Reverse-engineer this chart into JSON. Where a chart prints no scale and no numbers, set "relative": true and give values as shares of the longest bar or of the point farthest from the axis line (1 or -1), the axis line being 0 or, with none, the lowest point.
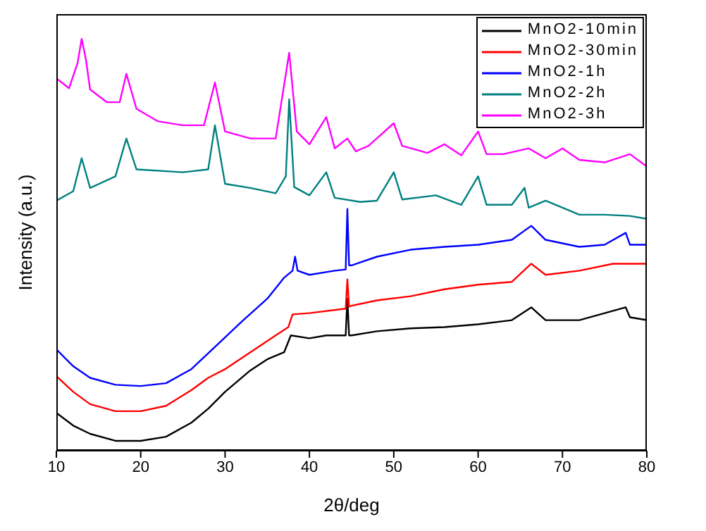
{
  "chart_data": {
    "type": "line",
    "xlabel": "2θ/deg",
    "ylabel": "Intensity (a.u.)",
    "relative": true,
    "xlim": [
      10,
      80
    ],
    "xticks": [
      10,
      20,
      30,
      40,
      50,
      60,
      70,
      80
    ],
    "legend": "top right",
    "grid": false,
    "marker": "none",
    "line_style": "solid",
    "series": [
      {
        "name": "MnO2-10min",
        "color": "#000000",
        "x": [
          10,
          12,
          14,
          17,
          20,
          23,
          26,
          28,
          30,
          33,
          35,
          37,
          37.8,
          40,
          42,
          44.3,
          44.5,
          44.7,
          45,
          48,
          52,
          56,
          60,
          64,
          66.3,
          68,
          72,
          77.5,
          78,
          80
        ],
        "values": [
          0.092,
          0.061,
          0.041,
          0.024,
          0.024,
          0.034,
          0.068,
          0.102,
          0.143,
          0.195,
          0.222,
          0.239,
          0.28,
          0.273,
          0.28,
          0.28,
          0.369,
          0.28,
          0.28,
          0.29,
          0.297,
          0.3,
          0.307,
          0.317,
          0.348,
          0.317,
          0.317,
          0.348,
          0.324,
          0.317
        ]
      },
      {
        "name": "MnO2-30min",
        "color": "#ff0000",
        "x": [
          10,
          12,
          14,
          17,
          20,
          23,
          26,
          28,
          30,
          33,
          36,
          37.5,
          38,
          40,
          44.3,
          44.5,
          44.7,
          45,
          48,
          52,
          56,
          60,
          64,
          66.3,
          68,
          72,
          76,
          80
        ],
        "values": [
          0.181,
          0.143,
          0.113,
          0.096,
          0.096,
          0.109,
          0.147,
          0.177,
          0.198,
          0.239,
          0.28,
          0.3,
          0.331,
          0.334,
          0.345,
          0.416,
          0.35,
          0.352,
          0.365,
          0.375,
          0.392,
          0.403,
          0.41,
          0.454,
          0.427,
          0.437,
          0.454,
          0.454
        ]
      },
      {
        "name": "MnO2-1h",
        "color": "#0000ff",
        "x": [
          10,
          12,
          14,
          17,
          20,
          23,
          26,
          29,
          32,
          35,
          37,
          38,
          38.3,
          38.6,
          40,
          43,
          44.3,
          44.5,
          44.7,
          45,
          48,
          52,
          56,
          60,
          64,
          66.3,
          68,
          72,
          75,
          77.5,
          78,
          80
        ],
        "values": [
          0.246,
          0.205,
          0.177,
          0.16,
          0.157,
          0.164,
          0.198,
          0.256,
          0.314,
          0.369,
          0.42,
          0.437,
          0.471,
          0.437,
          0.427,
          0.437,
          0.44,
          0.587,
          0.45,
          0.45,
          0.471,
          0.488,
          0.495,
          0.5,
          0.512,
          0.546,
          0.512,
          0.495,
          0.5,
          0.529,
          0.5,
          0.5
        ]
      },
      {
        "name": "MnO2-2h",
        "color": "#008080",
        "x": [
          10,
          12,
          13,
          14,
          17,
          18.3,
          19.5,
          25,
          28,
          28.8,
          30,
          33,
          36,
          37.2,
          37.6,
          38.2,
          40,
          42,
          43,
          46,
          48,
          50,
          51,
          55,
          58,
          60,
          61,
          64,
          65.5,
          66,
          68,
          72,
          75,
          78,
          80
        ],
        "values": [
          0.607,
          0.63,
          0.71,
          0.638,
          0.666,
          0.758,
          0.683,
          0.676,
          0.683,
          0.79,
          0.648,
          0.638,
          0.625,
          0.666,
          0.853,
          0.64,
          0.62,
          0.676,
          0.614,
          0.604,
          0.607,
          0.676,
          0.61,
          0.62,
          0.597,
          0.666,
          0.597,
          0.597,
          0.638,
          0.59,
          0.607,
          0.573,
          0.573,
          0.57,
          0.563
        ]
      },
      {
        "name": "MnO2-3h",
        "color": "#ff00ff",
        "x": [
          10,
          11.5,
          12.5,
          13,
          13.5,
          14,
          16,
          17.5,
          18.3,
          19.5,
          22,
          25,
          27.5,
          28.8,
          30,
          33,
          36,
          37.6,
          38.5,
          40,
          42,
          43,
          44.5,
          45.5,
          47,
          50,
          51,
          54,
          56,
          58,
          60,
          61,
          63,
          66,
          68,
          70,
          72,
          75,
          78,
          80
        ],
        "values": [
          0.904,
          0.88,
          0.94,
          1,
          0.95,
          0.877,
          0.846,
          0.846,
          0.915,
          0.83,
          0.8,
          0.79,
          0.79,
          0.894,
          0.775,
          0.758,
          0.758,
          0.966,
          0.775,
          0.744,
          0.81,
          0.734,
          0.758,
          0.727,
          0.74,
          0.795,
          0.74,
          0.723,
          0.744,
          0.717,
          0.775,
          0.72,
          0.72,
          0.734,
          0.71,
          0.734,
          0.706,
          0.7,
          0.72,
          0.69
        ]
      }
    ]
  }
}
